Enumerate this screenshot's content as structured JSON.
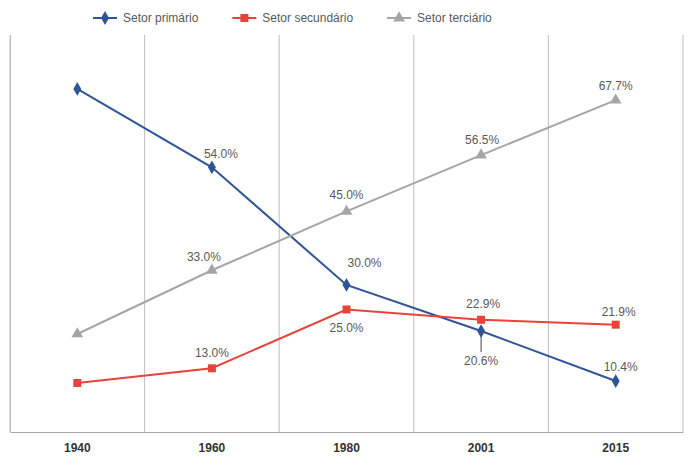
{
  "chart_data": {
    "type": "line",
    "categories": [
      "1940",
      "1960",
      "1980",
      "2001",
      "2015"
    ],
    "ylim": [
      0,
      81
    ],
    "grid": true,
    "legend": "top",
    "tick_labels": "x",
    "data_labels": true,
    "series": [
      {
        "name": "Setor primário",
        "color": "#2f5597",
        "marker": "diamond",
        "values": [
          70,
          54.0,
          30.0,
          20.6,
          10.4
        ],
        "value_labels": [
          null,
          "54.0%",
          "30.0%",
          "20.6%",
          "10.4%"
        ]
      },
      {
        "name": "Setor secundário",
        "color": "#e8433a",
        "marker": "square",
        "values": [
          10,
          13.0,
          25.0,
          22.9,
          21.9
        ],
        "value_labels": [
          null,
          "13.0%",
          "25.0%",
          "22.9%",
          "21.9%"
        ]
      },
      {
        "name": "Setor terciário",
        "color": "#a5a5a5",
        "marker": "triangle",
        "values": [
          20,
          33.0,
          45.0,
          56.5,
          67.7
        ],
        "value_labels": [
          null,
          "33.0%",
          "45.0%",
          "56.5%",
          "67.7%"
        ]
      }
    ]
  }
}
